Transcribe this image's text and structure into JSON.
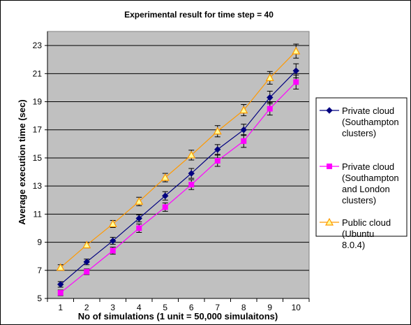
{
  "chart_data": {
    "type": "line",
    "title": "Experimental result for time step = 40",
    "xlabel": "No of simulations (1 unit = 50,000 simulaitons)",
    "ylabel": "Average execution time (sec)",
    "x": [
      1,
      2,
      3,
      4,
      5,
      6,
      7,
      8,
      9,
      10
    ],
    "xlim": [
      0.5,
      10.5
    ],
    "ylim": [
      5,
      24
    ],
    "yticks": [
      5,
      7,
      9,
      11,
      13,
      15,
      17,
      19,
      21,
      23
    ],
    "grid": "horizontal",
    "legend_position": "right",
    "plot_background": "#c0c0c0",
    "series": [
      {
        "name": "Private cloud (Southampton clusters)",
        "legend_lines": [
          "Private cloud",
          "(Southampton",
          "clusters)"
        ],
        "color": "#000080",
        "marker": "diamond",
        "values": [
          6.0,
          7.6,
          9.1,
          10.7,
          12.3,
          13.9,
          15.6,
          17.0,
          19.3,
          21.2
        ],
        "errors": [
          0.2,
          0.2,
          0.25,
          0.25,
          0.3,
          0.35,
          0.35,
          0.4,
          0.45,
          0.5
        ]
      },
      {
        "name": "Private cloud (Southampton and London clusters)",
        "legend_lines": [
          "Private cloud",
          "(Southampton",
          "and London",
          "clusters)"
        ],
        "color": "#ff00ff",
        "marker": "square",
        "values": [
          5.4,
          6.9,
          8.4,
          10.0,
          11.5,
          13.1,
          14.8,
          16.2,
          18.5,
          20.4
        ],
        "errors": [
          0.2,
          0.2,
          0.25,
          0.3,
          0.3,
          0.35,
          0.4,
          0.45,
          0.45,
          0.5
        ]
      },
      {
        "name": "Public cloud (Ubuntu 8.0.4)",
        "legend_lines": [
          "Public cloud",
          "(Ubuntu",
          "8.0.4)"
        ],
        "color": "#ff9900",
        "marker": "triangle",
        "values": [
          7.2,
          8.8,
          10.3,
          11.9,
          13.6,
          15.2,
          16.9,
          18.4,
          20.7,
          22.6
        ],
        "errors": [
          0.2,
          0.2,
          0.25,
          0.3,
          0.3,
          0.35,
          0.4,
          0.4,
          0.45,
          0.5
        ]
      }
    ]
  }
}
